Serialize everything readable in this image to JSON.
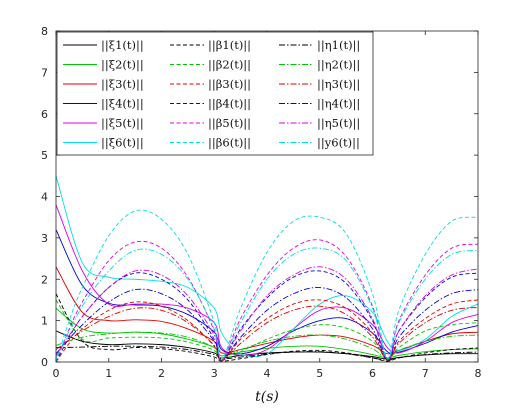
{
  "chart_data": {
    "type": "line",
    "xlabel": "t(s)",
    "ylabel": "",
    "xlim": [
      0,
      8
    ],
    "ylim": [
      0,
      8
    ],
    "xticks": [
      0,
      1,
      2,
      3,
      4,
      5,
      6,
      7,
      8
    ],
    "yticks": [
      0,
      1,
      2,
      3,
      4,
      5,
      6,
      7,
      8
    ],
    "grid": false,
    "legend_position": "top-left",
    "legend_columns": 3,
    "series": [
      {
        "name": "||ξ1(t)||",
        "style": "solid",
        "color": "#000000",
        "x": [
          0,
          0.5,
          1,
          1.5,
          2,
          2.5,
          3,
          3.14,
          3.5,
          4,
          4.5,
          5,
          5.5,
          6,
          6.28,
          6.5,
          7,
          7.5,
          8
        ],
        "y": [
          0.75,
          0.5,
          0.42,
          0.44,
          0.42,
          0.35,
          0.22,
          0.1,
          0.16,
          0.22,
          0.24,
          0.24,
          0.2,
          0.13,
          0.07,
          0.11,
          0.17,
          0.2,
          0.2
        ]
      },
      {
        "name": "||ξ2(t)||",
        "style": "solid",
        "color": "#00c800",
        "x": [
          0,
          0.5,
          1,
          1.5,
          2,
          2.5,
          3,
          3.14,
          3.5,
          4,
          4.5,
          5,
          5.5,
          6,
          6.28,
          6.5,
          7,
          7.5,
          8
        ],
        "y": [
          1.3,
          0.8,
          0.7,
          0.72,
          0.68,
          0.55,
          0.35,
          0.15,
          0.24,
          0.33,
          0.38,
          0.38,
          0.3,
          0.18,
          0.1,
          0.16,
          0.25,
          0.3,
          0.32
        ]
      },
      {
        "name": "||ξ3(t)||",
        "style": "solid",
        "color": "#e00000",
        "x": [
          0,
          0.5,
          1,
          1.5,
          2,
          2.5,
          3,
          3.14,
          3.5,
          4,
          4.5,
          5,
          5.5,
          6,
          6.28,
          6.5,
          7,
          7.5,
          8
        ],
        "y": [
          2.3,
          1.2,
          1.0,
          1.02,
          0.98,
          0.8,
          0.5,
          0.22,
          0.3,
          0.45,
          0.58,
          0.65,
          0.6,
          0.4,
          0.2,
          0.28,
          0.5,
          0.68,
          0.72
        ]
      },
      {
        "name": "||ξ4(t)||",
        "style": "solid",
        "color": "#0000e0",
        "x": [
          0,
          0.5,
          1,
          1.5,
          2,
          2.5,
          3,
          3.14,
          3.5,
          4,
          4.5,
          5,
          5.5,
          6,
          6.28,
          6.5,
          7,
          7.5,
          8
        ],
        "y": [
          3.2,
          1.85,
          1.42,
          1.38,
          1.35,
          1.15,
          0.72,
          0.3,
          0.2,
          0.38,
          0.75,
          1.0,
          1.05,
          0.7,
          0.25,
          0.24,
          0.45,
          0.72,
          0.88
        ]
      },
      {
        "name": "||ξ5(t)||",
        "style": "solid",
        "color": "#e000e0",
        "x": [
          0,
          0.5,
          1,
          1.5,
          2,
          2.5,
          3,
          3.14,
          3.5,
          4,
          4.5,
          5,
          5.5,
          6,
          6.28,
          6.5,
          7,
          7.5,
          8
        ],
        "y": [
          3.8,
          2.2,
          1.4,
          1.4,
          1.4,
          1.3,
          0.95,
          0.35,
          0.16,
          0.3,
          0.8,
          1.25,
          1.3,
          0.9,
          0.35,
          0.22,
          0.5,
          0.95,
          1.15
        ]
      },
      {
        "name": "||ξ6(t)||",
        "style": "solid",
        "color": "#00e0e0",
        "x": [
          0,
          0.5,
          1,
          1.5,
          2,
          2.5,
          3,
          3.14,
          3.5,
          4,
          4.5,
          5,
          5.5,
          6,
          6.28,
          6.5,
          7,
          7.5,
          8
        ],
        "y": [
          4.5,
          2.4,
          2.05,
          2.0,
          1.95,
          1.8,
          1.3,
          0.7,
          0.2,
          0.2,
          0.8,
          1.4,
          1.6,
          1.2,
          0.5,
          0.28,
          0.55,
          1.1,
          1.4
        ]
      },
      {
        "name": "||β1(t)||",
        "style": "dashed",
        "color": "#000000",
        "x": [
          0,
          0.5,
          1,
          1.5,
          2,
          2.5,
          3,
          3.14,
          3.5,
          4,
          4.5,
          5,
          5.5,
          6,
          6.28,
          6.5,
          7,
          7.5,
          8
        ],
        "y": [
          1.65,
          0.5,
          0.3,
          0.35,
          0.32,
          0.25,
          0.12,
          0.02,
          0.08,
          0.18,
          0.26,
          0.28,
          0.22,
          0.1,
          0.02,
          0.1,
          0.22,
          0.3,
          0.34
        ]
      },
      {
        "name": "||β2(t)||",
        "style": "dashed",
        "color": "#00c800",
        "x": [
          0,
          0.5,
          1,
          1.5,
          2,
          2.5,
          3,
          3.14,
          3.5,
          4,
          4.5,
          5,
          5.5,
          6,
          6.28,
          6.5,
          7,
          7.5,
          8
        ],
        "y": [
          1.5,
          0.55,
          0.58,
          0.6,
          0.58,
          0.48,
          0.28,
          0.05,
          0.25,
          0.55,
          0.78,
          0.9,
          0.82,
          0.5,
          0.08,
          0.35,
          0.75,
          0.9,
          0.95
        ]
      },
      {
        "name": "||β3(t)||",
        "style": "dashed",
        "color": "#e00000",
        "x": [
          0,
          0.25,
          0.5,
          1,
          1.5,
          2,
          2.5,
          3,
          3.14,
          3.5,
          4,
          4.5,
          5,
          5.5,
          6,
          6.28,
          6.5,
          7,
          7.5,
          8
        ],
        "y": [
          0,
          0.45,
          0.8,
          1.25,
          1.45,
          1.35,
          1.0,
          0.38,
          0.02,
          0.55,
          1.05,
          1.4,
          1.5,
          1.3,
          0.7,
          0.05,
          0.5,
          1.05,
          1.4,
          1.5
        ]
      },
      {
        "name": "||β4(t)||",
        "style": "dashed",
        "color": "#0000e0",
        "x": [
          0,
          0.25,
          0.5,
          1,
          1.5,
          2,
          2.5,
          3,
          3.14,
          3.5,
          4,
          4.5,
          5,
          5.5,
          6,
          6.28,
          6.5,
          7,
          7.5,
          8
        ],
        "y": [
          0,
          0.6,
          1.1,
          1.8,
          2.15,
          2.0,
          1.5,
          0.55,
          0.05,
          0.8,
          1.55,
          2.05,
          2.2,
          1.9,
          1.0,
          0.08,
          0.75,
          1.55,
          2.05,
          2.15
        ]
      },
      {
        "name": "||β5(t)||",
        "style": "dashed",
        "color": "#e000e0",
        "x": [
          0,
          0.25,
          0.5,
          1,
          1.5,
          2,
          2.5,
          3,
          3.14,
          3.5,
          4,
          4.5,
          5,
          5.5,
          6,
          6.28,
          6.5,
          7,
          7.5,
          8
        ],
        "y": [
          0,
          0.8,
          1.45,
          2.45,
          2.9,
          2.75,
          2.05,
          0.75,
          0.05,
          1.05,
          2.1,
          2.75,
          2.95,
          2.55,
          1.35,
          0.08,
          1.0,
          2.1,
          2.75,
          2.85
        ]
      },
      {
        "name": "||β6(t)||",
        "style": "dashed",
        "color": "#00e0e0",
        "x": [
          0,
          0.25,
          0.5,
          1,
          1.5,
          2,
          2.5,
          3,
          3.14,
          3.5,
          4,
          4.5,
          5,
          5.5,
          6,
          6.28,
          6.5,
          7,
          7.5,
          8
        ],
        "y": [
          0,
          1.0,
          1.8,
          3.05,
          3.65,
          3.45,
          2.6,
          0.95,
          0.05,
          1.3,
          2.65,
          3.4,
          3.5,
          3.1,
          1.65,
          0.1,
          1.25,
          2.6,
          3.4,
          3.5
        ]
      },
      {
        "name": "||η1(t)||",
        "style": "dashdot",
        "color": "#000000",
        "x": [
          0,
          0.5,
          1,
          1.5,
          2,
          2.5,
          3,
          3.14,
          3.5,
          4,
          4.5,
          5,
          5.5,
          6,
          6.28,
          6.5,
          7,
          7.5,
          8
        ],
        "y": [
          0.35,
          0.36,
          0.38,
          0.38,
          0.36,
          0.3,
          0.18,
          0.08,
          0.12,
          0.2,
          0.24,
          0.25,
          0.2,
          0.1,
          0.04,
          0.1,
          0.18,
          0.22,
          0.24
        ]
      },
      {
        "name": "||η2(t)||",
        "style": "dashdot",
        "color": "#00c800",
        "x": [
          0,
          0.5,
          1,
          1.5,
          2,
          2.5,
          3,
          3.14,
          3.5,
          4,
          4.5,
          5,
          5.5,
          6,
          6.28,
          6.5,
          7,
          7.5,
          8
        ],
        "y": [
          0.4,
          0.6,
          0.68,
          0.72,
          0.7,
          0.6,
          0.35,
          0.1,
          0.3,
          0.5,
          0.62,
          0.65,
          0.55,
          0.32,
          0.08,
          0.28,
          0.5,
          0.62,
          0.65
        ]
      },
      {
        "name": "||η3(t)||",
        "style": "dashdot",
        "color": "#e00000",
        "x": [
          0,
          0.5,
          1,
          1.5,
          2,
          2.5,
          3,
          3.14,
          3.5,
          4,
          4.5,
          5,
          5.5,
          6,
          6.28,
          6.5,
          7,
          7.5,
          8
        ],
        "y": [
          0.3,
          0.75,
          1.1,
          1.3,
          1.25,
          0.95,
          0.4,
          0.05,
          0.45,
          0.95,
          1.25,
          1.35,
          1.15,
          0.6,
          0.05,
          0.45,
          0.95,
          1.25,
          1.32
        ]
      },
      {
        "name": "||η4(t)||",
        "style": "dashdot",
        "color": "#0000e0",
        "x": [
          0,
          0.5,
          1,
          1.5,
          2,
          2.5,
          3,
          3.14,
          3.5,
          4,
          4.5,
          5,
          5.5,
          6,
          6.28,
          6.5,
          7,
          7.5,
          8
        ],
        "y": [
          0.2,
          0.9,
          1.45,
          1.75,
          1.65,
          1.25,
          0.5,
          0.05,
          0.6,
          1.25,
          1.65,
          1.8,
          1.55,
          0.8,
          0.05,
          0.6,
          1.25,
          1.65,
          1.75
        ]
      },
      {
        "name": "||η5(t)||",
        "style": "dashdot",
        "color": "#e000e0",
        "x": [
          0,
          0.5,
          1,
          1.5,
          2,
          2.5,
          3,
          3.14,
          3.5,
          4,
          4.5,
          5,
          5.5,
          6,
          6.28,
          6.5,
          7,
          7.5,
          8
        ],
        "y": [
          0.15,
          1.1,
          1.8,
          2.2,
          2.1,
          1.6,
          0.65,
          0.05,
          0.75,
          1.6,
          2.1,
          2.3,
          2.0,
          1.05,
          0.06,
          0.75,
          1.6,
          2.1,
          2.25
        ]
      },
      {
        "name": "||y6(t)||",
        "style": "dashdot",
        "color": "#00e0e0",
        "x": [
          0,
          0.5,
          1,
          1.5,
          2,
          2.5,
          3,
          3.14,
          3.5,
          4,
          4.5,
          5,
          5.5,
          6,
          6.28,
          6.5,
          7,
          7.5,
          8
        ],
        "y": [
          0.1,
          1.35,
          2.2,
          2.7,
          2.6,
          2.0,
          0.8,
          0.06,
          0.95,
          2.0,
          2.6,
          2.75,
          2.45,
          1.3,
          0.08,
          0.95,
          2.0,
          2.6,
          2.7
        ]
      }
    ]
  }
}
